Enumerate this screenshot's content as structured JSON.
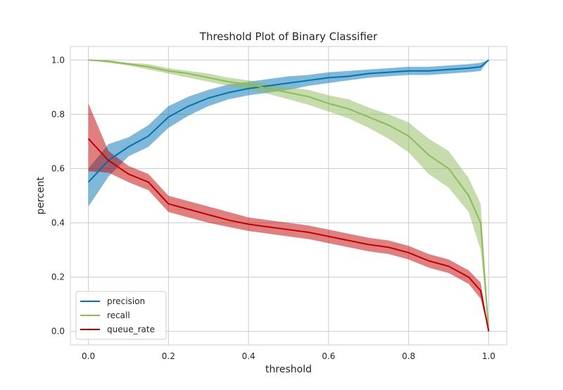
{
  "chart_data": {
    "type": "line",
    "title": "Threshold Plot of Binary Classifier",
    "xlabel": "threshold",
    "ylabel": "percent",
    "xlim": [
      -0.045,
      1.045
    ],
    "ylim": [
      -0.05,
      1.05
    ],
    "x_ticks": [
      "0.0",
      "0.2",
      "0.4",
      "0.6",
      "0.8",
      "1.0"
    ],
    "y_ticks": [
      "0.0",
      "0.2",
      "0.4",
      "0.6",
      "0.8",
      "1.0"
    ],
    "grid": true,
    "legend_position": "lower-left",
    "x": [
      0.0,
      0.05,
      0.1,
      0.15,
      0.2,
      0.25,
      0.3,
      0.35,
      0.4,
      0.45,
      0.5,
      0.55,
      0.6,
      0.65,
      0.7,
      0.75,
      0.8,
      0.85,
      0.9,
      0.95,
      0.98,
      1.0
    ],
    "series": [
      {
        "name": "precision",
        "color": "#0072B2",
        "values": [
          0.55,
          0.63,
          0.68,
          0.72,
          0.79,
          0.83,
          0.86,
          0.88,
          0.895,
          0.905,
          0.915,
          0.925,
          0.935,
          0.94,
          0.95,
          0.955,
          0.96,
          0.96,
          0.965,
          0.97,
          0.975,
          1.0
        ],
        "lower": [
          0.46,
          0.57,
          0.645,
          0.68,
          0.75,
          0.795,
          0.83,
          0.855,
          0.87,
          0.88,
          0.89,
          0.905,
          0.915,
          0.925,
          0.935,
          0.94,
          0.945,
          0.945,
          0.95,
          0.955,
          0.96,
          1.0
        ],
        "upper": [
          0.6,
          0.69,
          0.715,
          0.76,
          0.83,
          0.865,
          0.89,
          0.91,
          0.92,
          0.93,
          0.94,
          0.945,
          0.955,
          0.96,
          0.965,
          0.97,
          0.975,
          0.975,
          0.98,
          0.985,
          0.99,
          1.0
        ]
      },
      {
        "name": "recall",
        "color": "#8EBA5C",
        "values": [
          1.0,
          0.995,
          0.985,
          0.975,
          0.96,
          0.95,
          0.935,
          0.92,
          0.91,
          0.895,
          0.88,
          0.865,
          0.84,
          0.82,
          0.79,
          0.76,
          0.72,
          0.65,
          0.6,
          0.5,
          0.4,
          0.0
        ],
        "lower": [
          1.0,
          0.99,
          0.98,
          0.965,
          0.95,
          0.935,
          0.92,
          0.905,
          0.89,
          0.875,
          0.855,
          0.835,
          0.81,
          0.785,
          0.75,
          0.71,
          0.66,
          0.58,
          0.53,
          0.44,
          0.3,
          0.0
        ],
        "upper": [
          1.0,
          1.0,
          0.99,
          0.985,
          0.97,
          0.96,
          0.95,
          0.935,
          0.925,
          0.91,
          0.9,
          0.89,
          0.87,
          0.855,
          0.825,
          0.8,
          0.77,
          0.71,
          0.665,
          0.565,
          0.47,
          0.0
        ]
      },
      {
        "name": "queue_rate",
        "color": "#C00000",
        "values": [
          0.71,
          0.63,
          0.58,
          0.55,
          0.47,
          0.45,
          0.43,
          0.41,
          0.395,
          0.385,
          0.375,
          0.365,
          0.35,
          0.335,
          0.32,
          0.31,
          0.29,
          0.26,
          0.24,
          0.2,
          0.15,
          0.0
        ],
        "lower": [
          0.59,
          0.585,
          0.55,
          0.52,
          0.44,
          0.42,
          0.4,
          0.385,
          0.37,
          0.36,
          0.35,
          0.34,
          0.325,
          0.31,
          0.295,
          0.285,
          0.265,
          0.235,
          0.215,
          0.175,
          0.12,
          0.0
        ],
        "upper": [
          0.84,
          0.665,
          0.61,
          0.58,
          0.5,
          0.48,
          0.46,
          0.44,
          0.42,
          0.41,
          0.4,
          0.39,
          0.375,
          0.36,
          0.345,
          0.335,
          0.315,
          0.285,
          0.265,
          0.225,
          0.18,
          0.0
        ]
      }
    ]
  }
}
